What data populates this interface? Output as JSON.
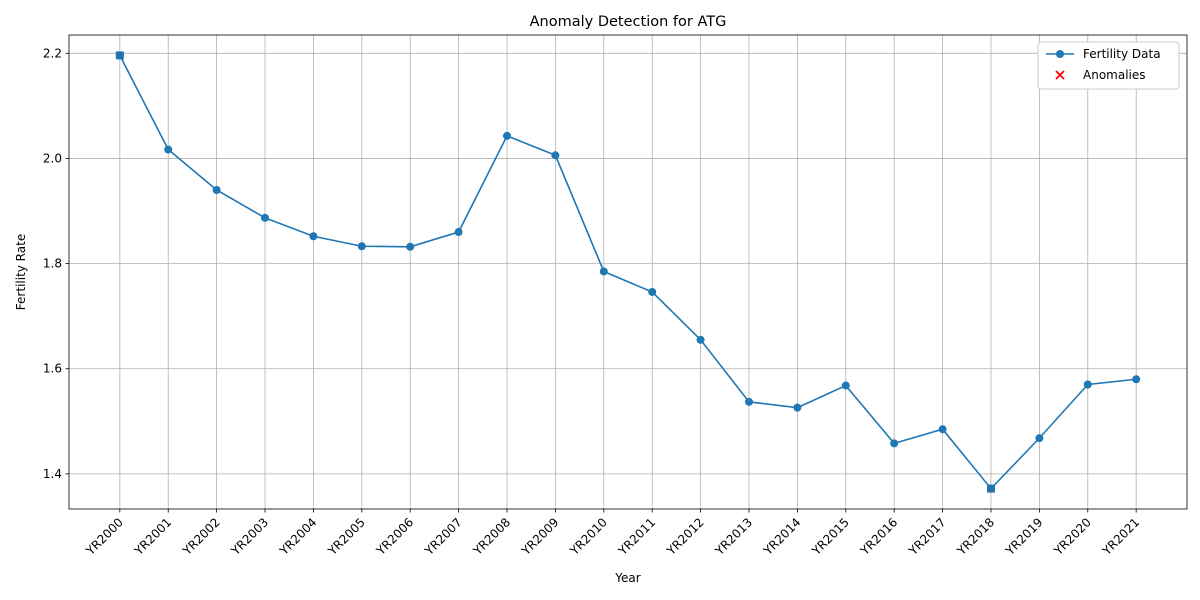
{
  "chart_data": {
    "type": "line",
    "title": "Anomaly Detection for ATG",
    "xlabel": "Year",
    "ylabel": "Fertility Rate",
    "categories": [
      "YR2000",
      "YR2001",
      "YR2002",
      "YR2003",
      "YR2004",
      "YR2005",
      "YR2006",
      "YR2007",
      "YR2008",
      "YR2009",
      "YR2010",
      "YR2011",
      "YR2012",
      "YR2013",
      "YR2014",
      "YR2015",
      "YR2016",
      "YR2017",
      "YR2018",
      "YR2019",
      "YR2020",
      "YR2021"
    ],
    "series": [
      {
        "name": "Fertility Data",
        "color": "#1f77b4",
        "values": [
          2.196,
          2.017,
          1.94,
          1.887,
          1.852,
          1.833,
          1.832,
          1.86,
          2.043,
          2.006,
          1.785,
          1.746,
          1.655,
          1.537,
          1.526,
          1.568,
          1.458,
          1.485,
          1.372,
          1.468,
          1.57,
          1.58
        ]
      }
    ],
    "anomalies": {
      "name": "Anomalies",
      "color": "#ff0000",
      "indices": [
        0,
        18
      ]
    },
    "yticks": [
      1.4,
      1.6,
      1.8,
      2.0,
      2.2
    ],
    "ylim": [
      1.3332,
      2.2348
    ],
    "grid": true,
    "legend": "top-right"
  }
}
